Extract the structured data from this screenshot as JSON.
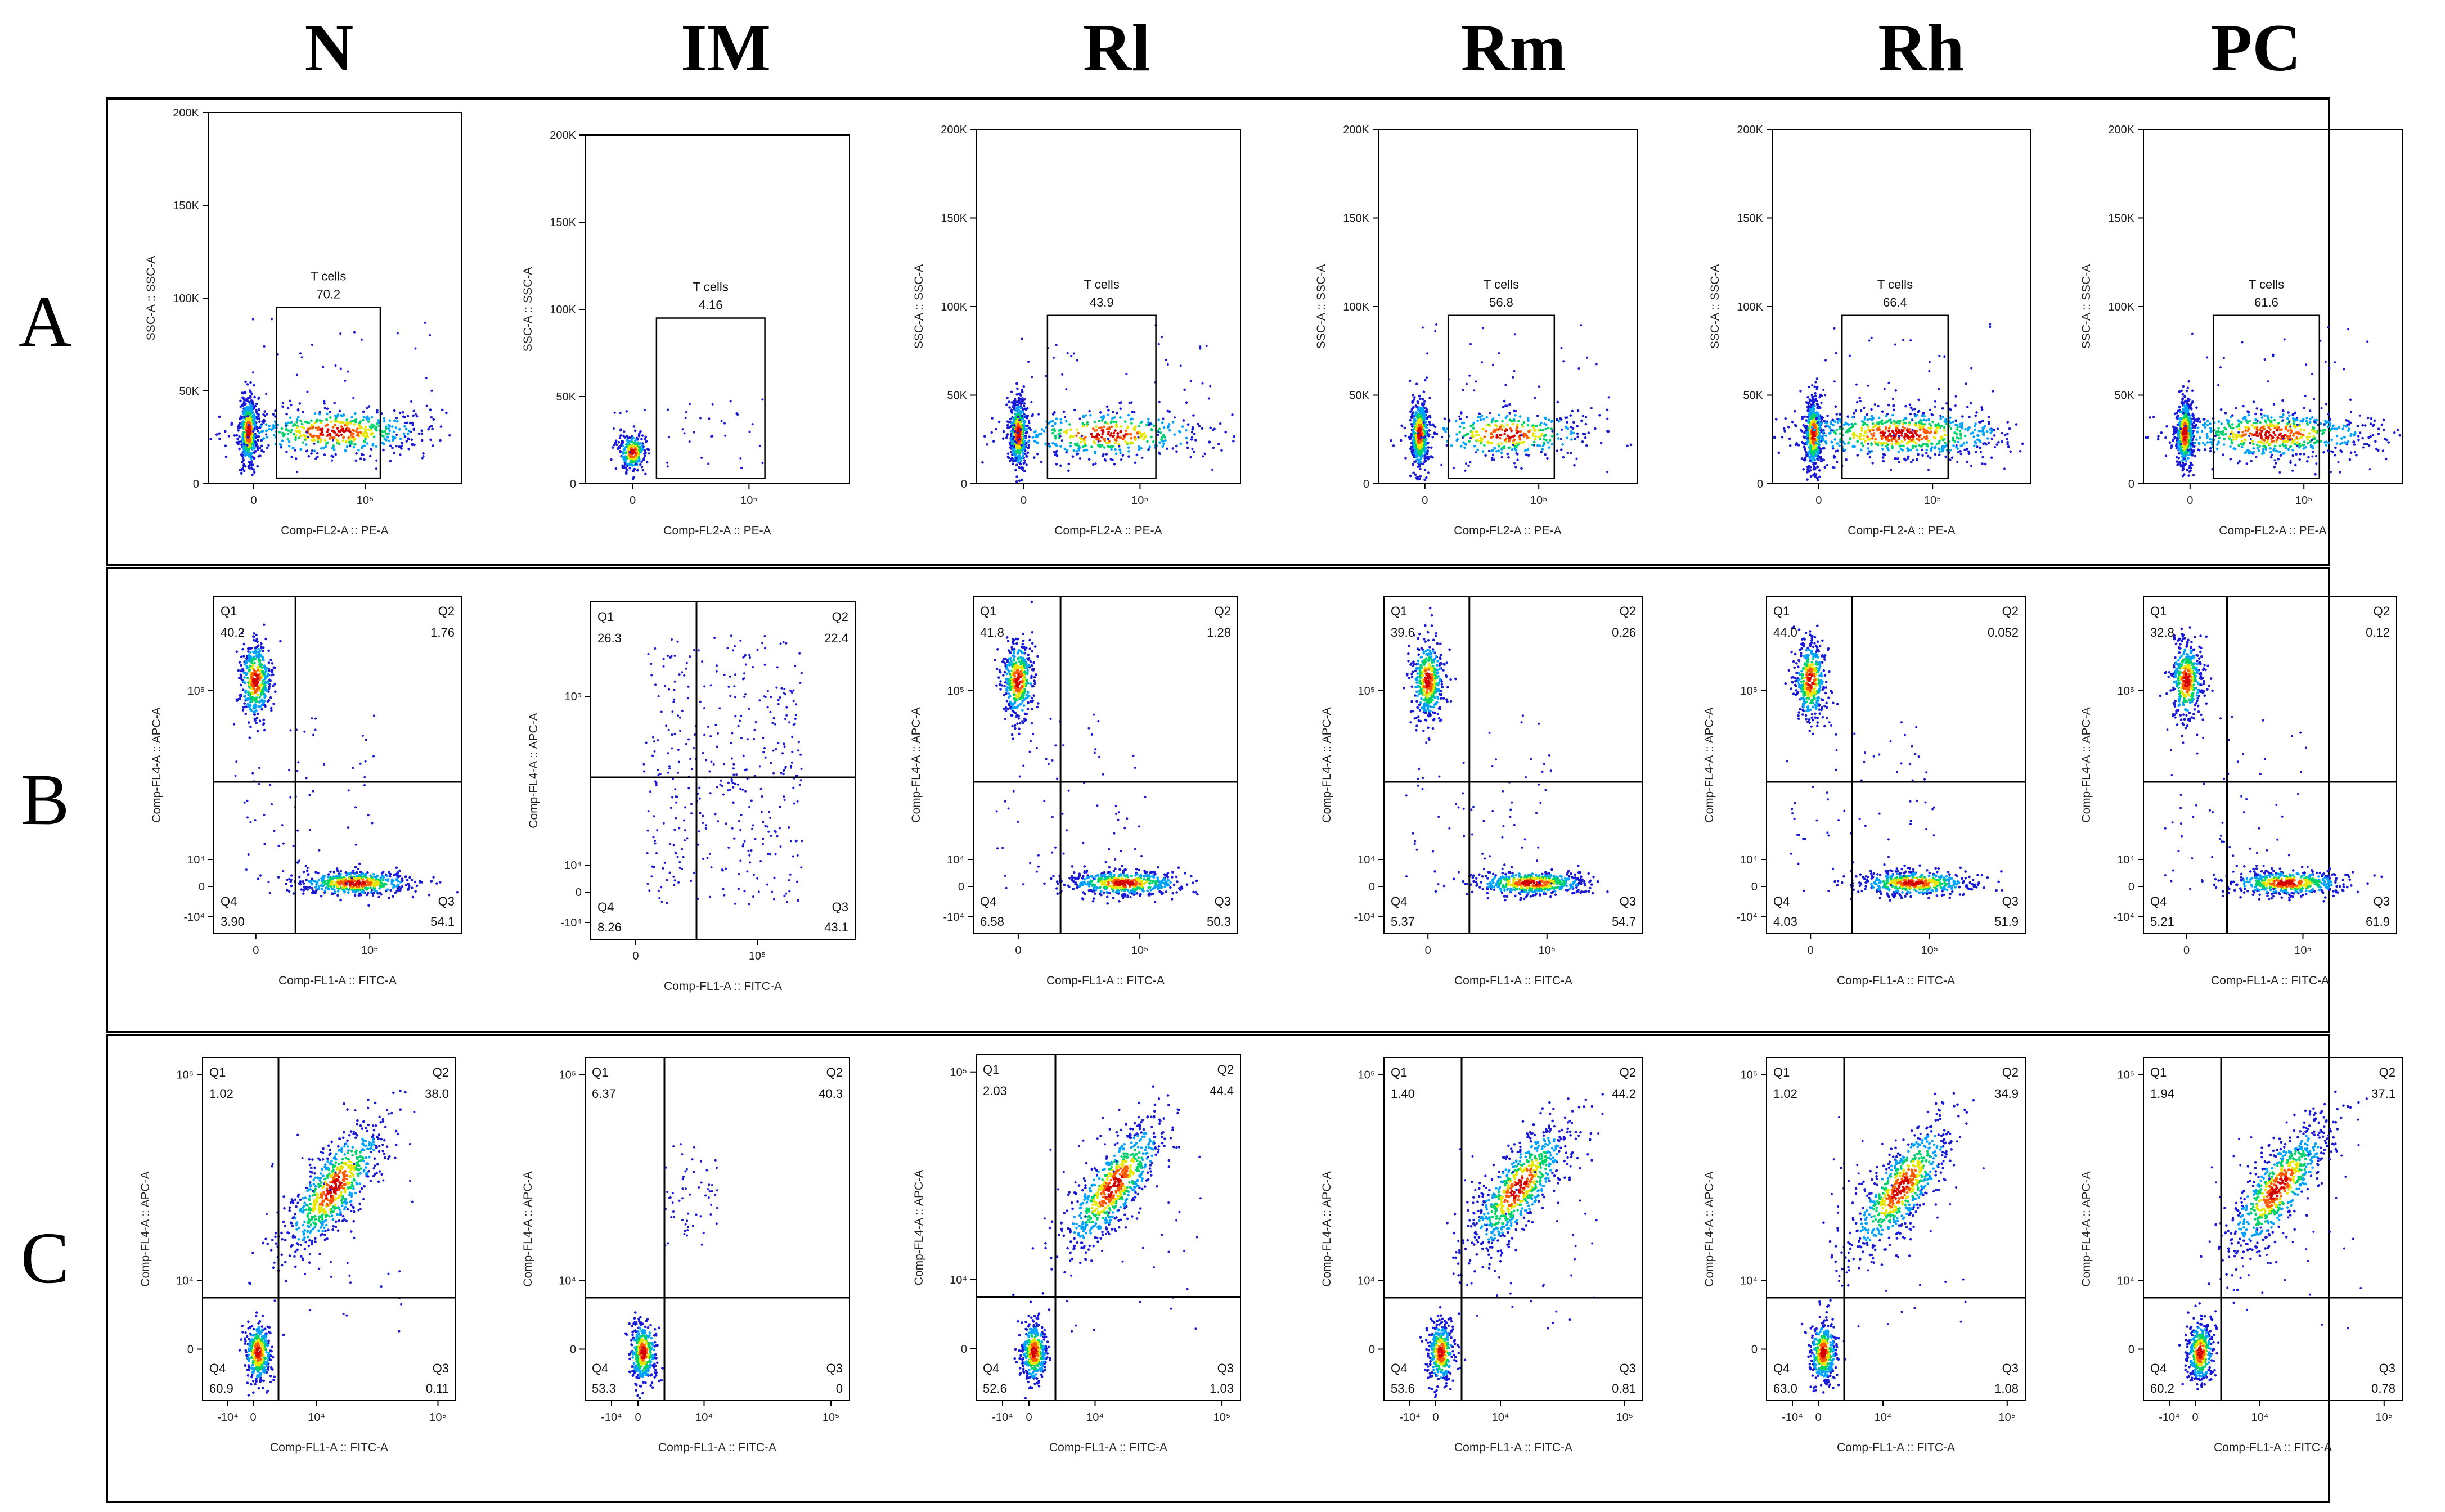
{
  "columns": [
    "N",
    "IM",
    "Rl",
    "Rm",
    "Rh",
    "PC"
  ],
  "rows": [
    "A",
    "B",
    "C"
  ],
  "palette": [
    "#1a1ad6",
    "#00a2ff",
    "#00d26a",
    "#e6e600",
    "#ff5a00",
    "#d40000"
  ],
  "chart_data": [
    {
      "type": "scatter",
      "panel": "A",
      "xlabel": "Comp-FL2-A :: PE-A",
      "ylabel": "SSC-A :: SSC-A",
      "x_ticks": [
        "0",
        "10⁵"
      ],
      "y_ticks": [
        "0",
        "50K",
        "100K",
        "150K",
        "200K"
      ],
      "gate_name": "T cells",
      "gate_percent": [
        "70.2",
        "4.16",
        "43.9",
        "56.8",
        "66.4",
        "61.6"
      ],
      "samples": [
        "N",
        "IM",
        "Rl",
        "Rm",
        "Rh",
        "PC"
      ]
    },
    {
      "type": "scatter",
      "panel": "B",
      "xlabel": "Comp-FL1-A :: FITC-A",
      "ylabel": "Comp-FL4-A :: APC-A",
      "x_ticks": [
        "0",
        "10⁵"
      ],
      "y_ticks": [
        "-10⁴",
        "0",
        "10⁴",
        "10⁵"
      ],
      "quadrant_labels": [
        "Q1",
        "Q2",
        "Q3",
        "Q4"
      ],
      "samples": [
        "N",
        "IM",
        "Rl",
        "Rm",
        "Rh",
        "PC"
      ],
      "quadrants": [
        {
          "Q1": "40.2",
          "Q2": "1.76",
          "Q3": "54.1",
          "Q4": "3.90"
        },
        {
          "Q1": "26.3",
          "Q2": "22.4",
          "Q3": "43.1",
          "Q4": "8.26"
        },
        {
          "Q1": "41.8",
          "Q2": "1.28",
          "Q3": "50.3",
          "Q4": "6.58"
        },
        {
          "Q1": "39.6",
          "Q2": "0.26",
          "Q3": "54.7",
          "Q4": "5.37"
        },
        {
          "Q1": "44.0",
          "Q2": "0.052",
          "Q3": "51.9",
          "Q4": "4.03"
        },
        {
          "Q1": "32.8",
          "Q2": "0.12",
          "Q3": "61.9",
          "Q4": "5.21"
        }
      ]
    },
    {
      "type": "scatter",
      "panel": "C",
      "xlabel": "Comp-FL1-A :: FITC-A",
      "ylabel": "Comp-FL4-A :: APC-A",
      "x_ticks": [
        "-10⁴",
        "0",
        "10⁴",
        "10⁵"
      ],
      "y_ticks": [
        "0",
        "10⁴",
        "10⁵"
      ],
      "quadrant_labels": [
        "Q1",
        "Q2",
        "Q3",
        "Q4"
      ],
      "samples": [
        "N",
        "IM",
        "Rl",
        "Rm",
        "Rh",
        "PC"
      ],
      "quadrants": [
        {
          "Q1": "1.02",
          "Q2": "38.0",
          "Q3": "0.11",
          "Q4": "60.9"
        },
        {
          "Q1": "6.37",
          "Q2": "40.3",
          "Q3": "0",
          "Q4": "53.3"
        },
        {
          "Q1": "2.03",
          "Q2": "44.4",
          "Q3": "1.03",
          "Q4": "52.6"
        },
        {
          "Q1": "1.40",
          "Q2": "44.2",
          "Q3": "0.81",
          "Q4": "53.6"
        },
        {
          "Q1": "1.02",
          "Q2": "34.9",
          "Q3": "1.08",
          "Q4": "63.0"
        },
        {
          "Q1": "1.94",
          "Q2": "37.1",
          "Q3": "0.78",
          "Q4": "60.2"
        }
      ]
    }
  ]
}
